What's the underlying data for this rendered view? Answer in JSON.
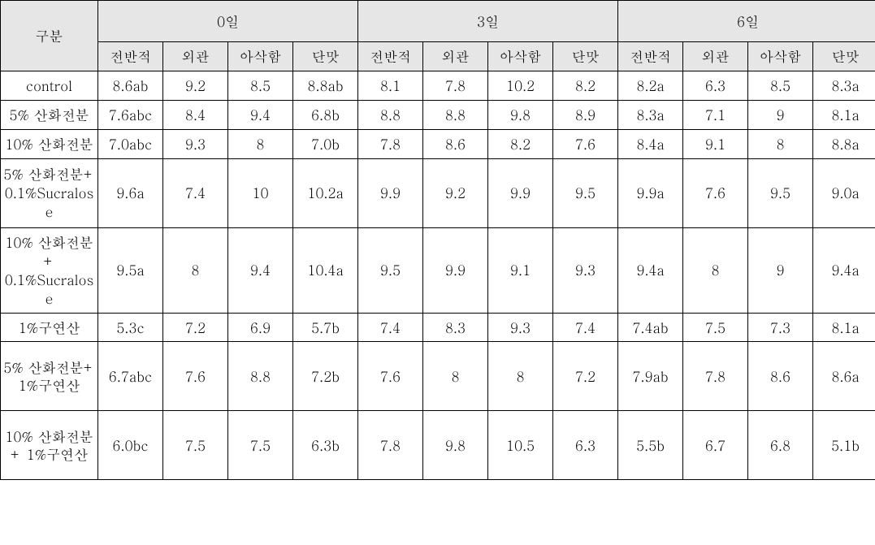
{
  "type": "table",
  "background_color": "#ffffff",
  "header_bg": "#e6e6e6",
  "border_color": "#000000",
  "font_family": "Batang, serif",
  "base_fontsize": 17,
  "header": {
    "corner": "구분",
    "day_groups": [
      "0일",
      "3일",
      "6일"
    ],
    "subcols": [
      "전반적",
      "외관",
      "아삭함",
      "단맛"
    ]
  },
  "rows": [
    {
      "label": "control",
      "cells": [
        "8.6ab",
        "9.2",
        "8.5",
        "8.8ab",
        "8.1",
        "7.8",
        "10.2",
        "8.2",
        "8.2a",
        "6.3",
        "8.5",
        "8.3a"
      ]
    },
    {
      "label": "5% 산화전분",
      "cells": [
        "7.6abc",
        "8.4",
        "9.4",
        "6.8b",
        "8.8",
        "8.8",
        "9.8",
        "8.9",
        "8.3a",
        "7.1",
        "9",
        "8.1a"
      ]
    },
    {
      "label": "10% 산화전분",
      "cells": [
        "7.0abc",
        "9.3",
        "8",
        "7.0b",
        "7.8",
        "8.6",
        "8.2",
        "7.6",
        "8.4a",
        "9.1",
        "8",
        "8.8a"
      ]
    },
    {
      "label": "5% 산화전분+ 0.1%Sucralose",
      "cells": [
        "9.6a",
        "7.4",
        "10",
        "10.2a",
        "9.9",
        "9.2",
        "9.9",
        "9.5",
        "9.9a",
        "7.6",
        "9.5",
        "9.0a"
      ]
    },
    {
      "label": "10% 산화전분+ 0.1%Sucralose",
      "cells": [
        "9.5a",
        "8",
        "9.4",
        "10.4a",
        "9.5",
        "9.9",
        "9.1",
        "9.3",
        "9.4a",
        "8",
        "9",
        "9.4a"
      ]
    },
    {
      "label": "1%구연산",
      "cells": [
        "5.3c",
        "7.2",
        "6.9",
        "5.7b",
        "7.4",
        "8.3",
        "9.3",
        "7.4",
        "7.4ab",
        "7.5",
        "7.3",
        "8.1a"
      ]
    },
    {
      "label": "5% 산화전분+ 1%구연산",
      "cells": [
        "6.7abc",
        "7.6",
        "8.8",
        "7.2b",
        "7.6",
        "8",
        "8",
        "7.2",
        "7.9ab",
        "7.8",
        "8.6",
        "8.6a"
      ]
    },
    {
      "label": "10% 산화전분+ 1%구연산",
      "cells": [
        "6.0bc",
        "7.5",
        "7.5",
        "6.3b",
        "7.8",
        "9.8",
        "10.5",
        "6.3",
        "5.5b",
        "6.7",
        "6.8",
        "5.1b"
      ]
    }
  ]
}
